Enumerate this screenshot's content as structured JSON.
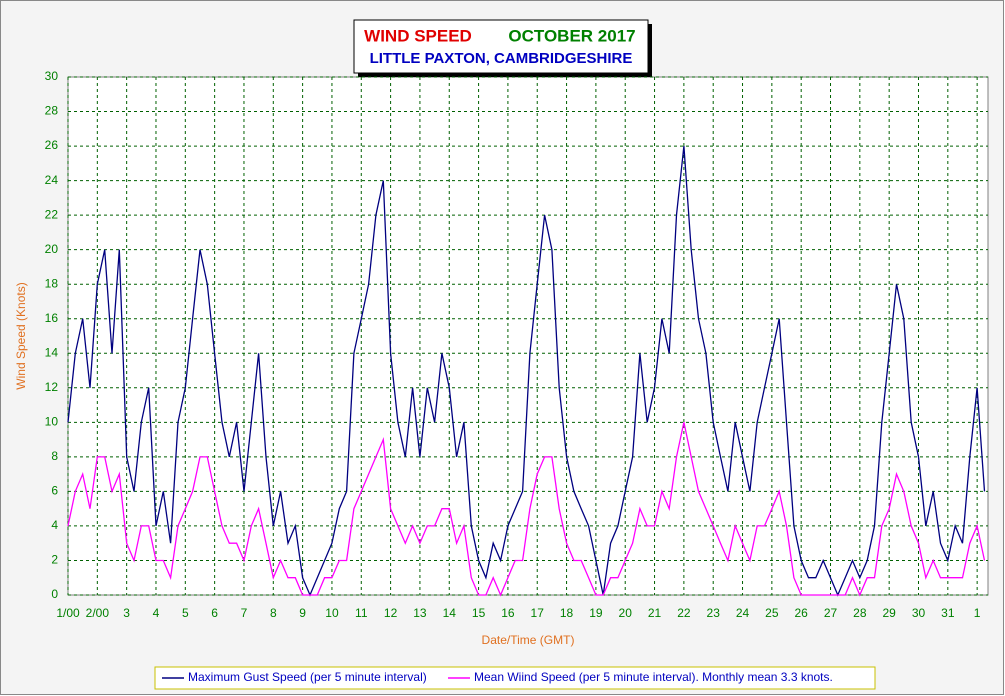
{
  "chart_data": {
    "type": "line",
    "title": "WIND SPEED",
    "title_date": "OCTOBER 2017",
    "subtitle": "LITTLE PAXTON, CAMBRIDGESHIRE",
    "x_label": "Date/Time (GMT)",
    "y_label": "Wind Speed (Knots)",
    "xlim": [
      1,
      32.37
    ],
    "ylim": [
      0,
      30
    ],
    "xticks": [
      {
        "value": 1,
        "label": "1/00"
      },
      {
        "value": 2,
        "label": "2/00"
      },
      3,
      4,
      5,
      6,
      7,
      8,
      9,
      10,
      11,
      12,
      13,
      14,
      15,
      16,
      17,
      18,
      19,
      20,
      21,
      22,
      23,
      24,
      25,
      26,
      27,
      28,
      29,
      30,
      31,
      {
        "value": 32,
        "label": "1"
      }
    ],
    "yticks": [
      0,
      2,
      4,
      6,
      8,
      10,
      12,
      14,
      16,
      18,
      20,
      22,
      24,
      26,
      28,
      30
    ],
    "grid": true,
    "x": [
      1,
      1.25,
      1.5,
      1.75,
      2,
      2.25,
      2.5,
      2.75,
      3,
      3.25,
      3.5,
      3.75,
      4,
      4.25,
      4.5,
      4.75,
      5,
      5.25,
      5.5,
      5.75,
      6,
      6.25,
      6.5,
      6.75,
      7,
      7.25,
      7.5,
      7.75,
      8,
      8.25,
      8.5,
      8.75,
      9,
      9.25,
      9.5,
      9.75,
      10,
      10.25,
      10.5,
      10.75,
      11,
      11.25,
      11.5,
      11.75,
      12,
      12.25,
      12.5,
      12.75,
      13,
      13.25,
      13.5,
      13.75,
      14,
      14.25,
      14.5,
      14.75,
      15,
      15.25,
      15.5,
      15.75,
      16,
      16.25,
      16.5,
      16.75,
      17,
      17.25,
      17.5,
      17.75,
      18,
      18.25,
      18.5,
      18.75,
      19,
      19.25,
      19.5,
      19.75,
      20,
      20.25,
      20.5,
      20.75,
      21,
      21.25,
      21.5,
      21.75,
      22,
      22.25,
      22.5,
      22.75,
      23,
      23.25,
      23.5,
      23.75,
      24,
      24.25,
      24.5,
      24.75,
      25,
      25.25,
      25.5,
      25.75,
      26,
      26.25,
      26.5,
      26.75,
      27,
      27.25,
      27.5,
      27.75,
      28,
      28.25,
      28.5,
      28.75,
      29,
      29.25,
      29.5,
      29.75,
      30,
      30.25,
      30.5,
      30.75,
      31,
      31.25,
      31.5,
      31.75,
      32,
      32.25
    ],
    "series": [
      {
        "name": "Maximum Gust Speed (per 5 minute interval)",
        "color": "#000080",
        "values": [
          10,
          14,
          16,
          12,
          18,
          20,
          14,
          20,
          8,
          6,
          10,
          12,
          4,
          6,
          3,
          10,
          12,
          16,
          20,
          18,
          14,
          10,
          8,
          10,
          6,
          10,
          14,
          8,
          4,
          6,
          3,
          4,
          1,
          0,
          1,
          2,
          3,
          5,
          6,
          14,
          16,
          18,
          22,
          24,
          14,
          10,
          8,
          12,
          8,
          12,
          10,
          14,
          12,
          8,
          10,
          4,
          2,
          1,
          3,
          2,
          4,
          5,
          6,
          14,
          18,
          22,
          20,
          12,
          8,
          6,
          5,
          4,
          2,
          0,
          3,
          4,
          6,
          8,
          14,
          10,
          12,
          16,
          14,
          22,
          26,
          20,
          16,
          14,
          10,
          8,
          6,
          10,
          8,
          6,
          10,
          12,
          14,
          16,
          10,
          4,
          2,
          1,
          1,
          2,
          1,
          0,
          1,
          2,
          1,
          2,
          4,
          10,
          14,
          18,
          16,
          10,
          8,
          4,
          6,
          3,
          2,
          4,
          3,
          8,
          12,
          6
        ]
      },
      {
        "name": "Mean Wiind Speed (per 5 minute interval). Monthly mean 3.3 knots.",
        "color": "#ff00ff",
        "values": [
          4,
          6,
          7,
          5,
          8,
          8,
          6,
          7,
          3,
          2,
          4,
          4,
          2,
          2,
          1,
          4,
          5,
          6,
          8,
          8,
          6,
          4,
          3,
          3,
          2,
          4,
          5,
          3,
          1,
          2,
          1,
          1,
          0,
          0,
          0,
          1,
          1,
          2,
          2,
          5,
          6,
          7,
          8,
          9,
          5,
          4,
          3,
          4,
          3,
          4,
          4,
          5,
          5,
          3,
          4,
          1,
          0,
          0,
          1,
          0,
          1,
          2,
          2,
          5,
          7,
          8,
          8,
          5,
          3,
          2,
          2,
          1,
          0,
          0,
          1,
          1,
          2,
          3,
          5,
          4,
          4,
          6,
          5,
          8,
          10,
          8,
          6,
          5,
          4,
          3,
          2,
          4,
          3,
          2,
          4,
          4,
          5,
          6,
          4,
          1,
          0,
          0,
          0,
          0,
          0,
          0,
          0,
          1,
          0,
          1,
          1,
          4,
          5,
          7,
          6,
          4,
          3,
          1,
          2,
          1,
          1,
          1,
          1,
          3,
          4,
          2
        ]
      }
    ]
  }
}
